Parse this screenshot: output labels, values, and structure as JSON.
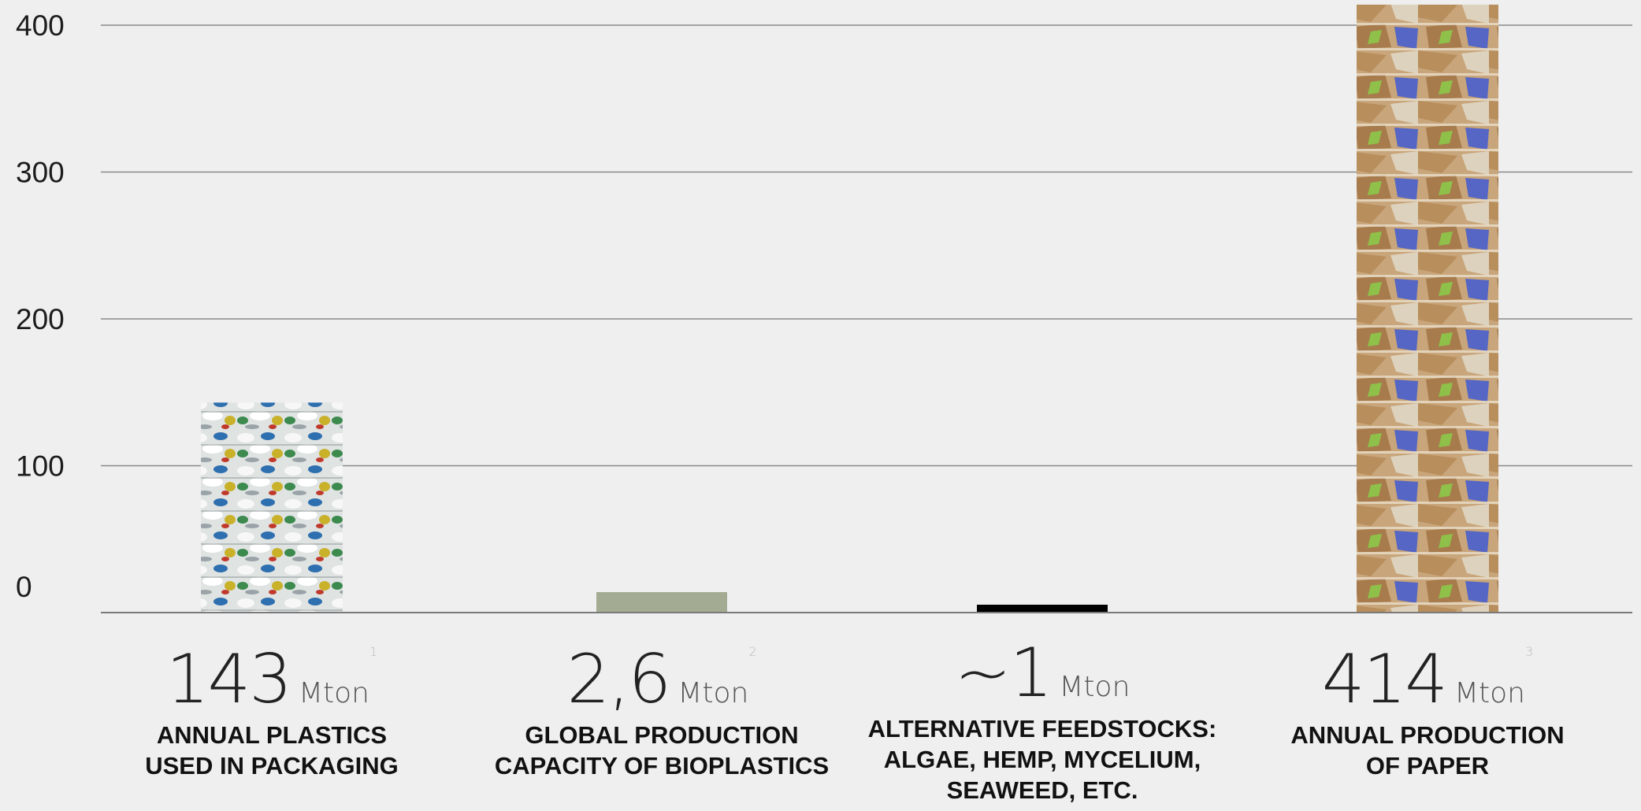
{
  "chart_data": {
    "type": "bar",
    "title": "",
    "xlabel": "",
    "ylabel": "",
    "ylim": [
      0,
      400
    ],
    "yticks": [
      "0",
      "100",
      "200",
      "300",
      "400"
    ],
    "grid": true,
    "categories": [
      "ANNUAL PLASTICS USED IN PACKAGING",
      "GLOBAL PRODUCTION CAPACITY OF BIOPLASTICS",
      "ALTERNATIVE FEEDSTOCKS: ALGAE, HEMP, MYCELIUM, SEAWEED, ETC.",
      "ANNUAL PRODUCTION OF PAPER"
    ],
    "values": [
      143,
      2.6,
      1,
      414
    ],
    "bar_fills": [
      "plastic-bales-photo",
      "#a3ab93",
      "#000000",
      "paper-bales-photo"
    ]
  },
  "annotations": [
    {
      "value": "143",
      "unit": "Mton",
      "ref": "1",
      "label_lines": [
        "ANNUAL PLASTICS",
        "USED IN PACKAGING"
      ]
    },
    {
      "value": "2,6",
      "unit": "Mton",
      "ref": "2",
      "label_lines": [
        "GLOBAL PRODUCTION",
        "CAPACITY OF BIOPLASTICS"
      ]
    },
    {
      "value": "~1",
      "unit": "Mton",
      "ref": "",
      "label_lines": [
        "ALTERNATIVE FEEDSTOCKS:",
        "ALGAE, HEMP, MYCELIUM,",
        "SEAWEED, ETC."
      ]
    },
    {
      "value": "414",
      "unit": "Mton",
      "ref": "3",
      "label_lines": [
        "ANNUAL PRODUCTION",
        "OF PAPER"
      ]
    }
  ]
}
